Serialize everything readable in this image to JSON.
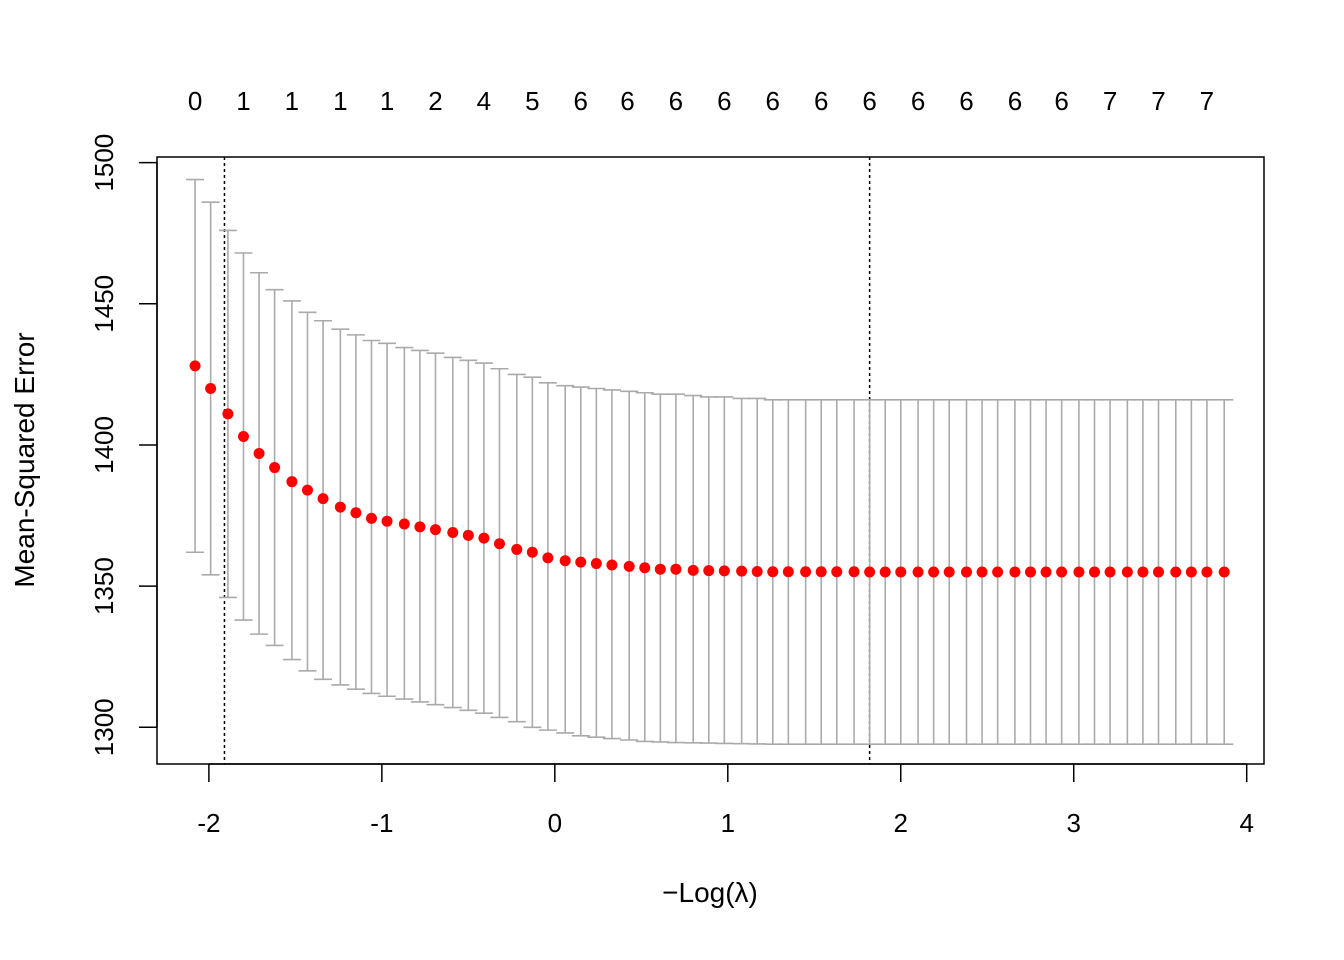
{
  "chart_data": {
    "type": "scatter",
    "xlabel": "−Log(λ)",
    "ylabel": "Mean-Squared Error",
    "xlim": [
      -2.3,
      4.1
    ],
    "ylim": [
      1287,
      1502
    ],
    "x_ticks": [
      -2,
      -1,
      0,
      1,
      2,
      3,
      4
    ],
    "x_tick_labels": [
      "-2",
      "-1",
      "0",
      "1",
      "2",
      "3",
      "4"
    ],
    "y_ticks": [
      1300,
      1350,
      1400,
      1450,
      1500
    ],
    "y_tick_labels": [
      "1300",
      "1350",
      "1400",
      "1450",
      "1500"
    ],
    "top_axis": {
      "x": [
        -2.08,
        -1.8,
        -1.52,
        -1.24,
        -0.97,
        -0.69,
        -0.41,
        -0.13,
        0.15,
        0.42,
        0.7,
        0.98,
        1.26,
        1.54,
        1.82,
        2.1,
        2.38,
        2.66,
        2.93,
        3.21,
        3.49,
        3.77
      ],
      "labels": [
        "0",
        "1",
        "1",
        "1",
        "1",
        "2",
        "4",
        "5",
        "6",
        "6",
        "6",
        "6",
        "6",
        "6",
        "6",
        "6",
        "6",
        "6",
        "6",
        "7",
        "7",
        "7"
      ]
    },
    "reference_lines": [
      -1.91,
      1.82
    ],
    "series": [
      {
        "color": "#ff0000",
        "error_bar_color": "#aaaaaa",
        "x": [
          -2.08,
          -1.99,
          -1.89,
          -1.8,
          -1.71,
          -1.62,
          -1.52,
          -1.43,
          -1.34,
          -1.24,
          -1.15,
          -1.06,
          -0.97,
          -0.87,
          -0.78,
          -0.69,
          -0.59,
          -0.5,
          -0.41,
          -0.32,
          -0.22,
          -0.13,
          -0.04,
          0.06,
          0.15,
          0.24,
          0.33,
          0.43,
          0.52,
          0.61,
          0.7,
          0.8,
          0.89,
          0.98,
          1.08,
          1.17,
          1.26,
          1.35,
          1.45,
          1.54,
          1.63,
          1.73,
          1.82,
          1.91,
          2.0,
          2.1,
          2.19,
          2.28,
          2.38,
          2.47,
          2.56,
          2.66,
          2.75,
          2.84,
          2.93,
          3.03,
          3.12,
          3.21,
          3.31,
          3.4,
          3.49,
          3.59,
          3.68,
          3.77,
          3.87
        ],
        "y": [
          1428,
          1420,
          1411,
          1403,
          1397,
          1392,
          1387,
          1384,
          1381,
          1378,
          1376,
          1374,
          1373,
          1372,
          1371,
          1370,
          1369,
          1368,
          1367,
          1365,
          1363,
          1362,
          1360,
          1359,
          1358.5,
          1358,
          1357.5,
          1357,
          1356.5,
          1356,
          1356,
          1355.6,
          1355.5,
          1355.4,
          1355.3,
          1355.2,
          1355.1,
          1355.1,
          1355.1,
          1355.1,
          1355.1,
          1355.1,
          1355,
          1355,
          1355,
          1355,
          1355,
          1355,
          1355,
          1355,
          1355,
          1355,
          1355,
          1355,
          1355,
          1355,
          1355,
          1355,
          1355,
          1355,
          1355,
          1355,
          1355,
          1355,
          1355
        ],
        "upper": [
          1494,
          1486,
          1476,
          1468,
          1461,
          1455,
          1451,
          1447,
          1444,
          1441,
          1439,
          1437,
          1436,
          1434.5,
          1433.5,
          1432.5,
          1431,
          1430,
          1429,
          1427,
          1425,
          1424,
          1422,
          1421,
          1420.5,
          1420,
          1419.5,
          1419,
          1418.5,
          1418,
          1418,
          1417.5,
          1417,
          1417,
          1416.5,
          1416.5,
          1416,
          1416,
          1416,
          1416,
          1416,
          1416,
          1416,
          1416,
          1416,
          1416,
          1416,
          1416,
          1416,
          1416,
          1416,
          1416,
          1416,
          1416,
          1416,
          1416,
          1416,
          1416,
          1416,
          1416,
          1416,
          1416,
          1416,
          1416,
          1416
        ],
        "lower": [
          1362,
          1354,
          1346,
          1338,
          1333,
          1329,
          1324,
          1320,
          1317,
          1315,
          1313.5,
          1312,
          1311,
          1310,
          1309,
          1308,
          1307,
          1306,
          1305,
          1303.5,
          1302,
          1300,
          1299,
          1298,
          1297,
          1296.5,
          1296,
          1295.5,
          1295,
          1294.8,
          1294.6,
          1294.5,
          1294.4,
          1294.3,
          1294.2,
          1294.1,
          1294,
          1294,
          1294,
          1294,
          1294,
          1294,
          1294,
          1294,
          1294,
          1294,
          1294,
          1294,
          1294,
          1294,
          1294,
          1294,
          1294,
          1294,
          1294,
          1294,
          1294,
          1294,
          1294,
          1294,
          1294,
          1294,
          1294,
          1294,
          1294
        ]
      }
    ]
  }
}
